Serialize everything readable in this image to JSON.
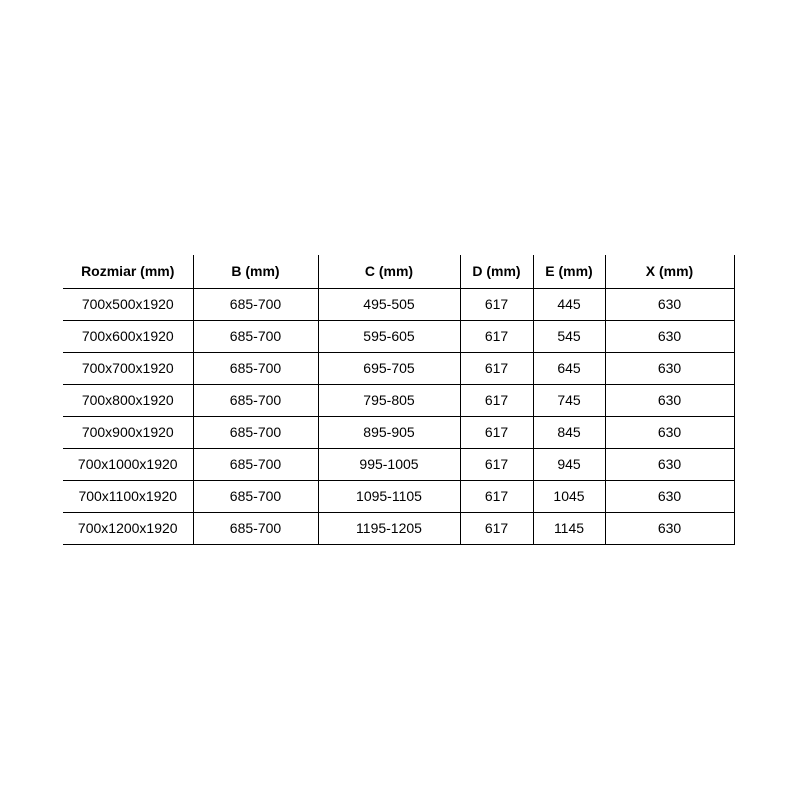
{
  "page": {
    "background": "#ffffff"
  },
  "table": {
    "name": "shower-enclosure-dimensions",
    "border_color": "#000000",
    "text_color": "#000000",
    "columns": [
      "Rozmiar (mm)",
      "B (mm)",
      "C (mm)",
      "D (mm)",
      "E (mm)",
      "X (mm)"
    ],
    "rows": [
      [
        "700x500x1920",
        "685-700",
        "495-505",
        "617",
        "445",
        "630"
      ],
      [
        "700x600x1920",
        "685-700",
        "595-605",
        "617",
        "545",
        "630"
      ],
      [
        "700x700x1920",
        "685-700",
        "695-705",
        "617",
        "645",
        "630"
      ],
      [
        "700x800x1920",
        "685-700",
        "795-805",
        "617",
        "745",
        "630"
      ],
      [
        "700x900x1920",
        "685-700",
        "895-905",
        "617",
        "845",
        "630"
      ],
      [
        "700x1000x1920",
        "685-700",
        "995-1005",
        "617",
        "945",
        "630"
      ],
      [
        "700x1100x1920",
        "685-700",
        "1095-1105",
        "617",
        "1045",
        "630"
      ],
      [
        "700x1200x1920",
        "685-700",
        "1195-1205",
        "617",
        "1145",
        "630"
      ]
    ]
  }
}
